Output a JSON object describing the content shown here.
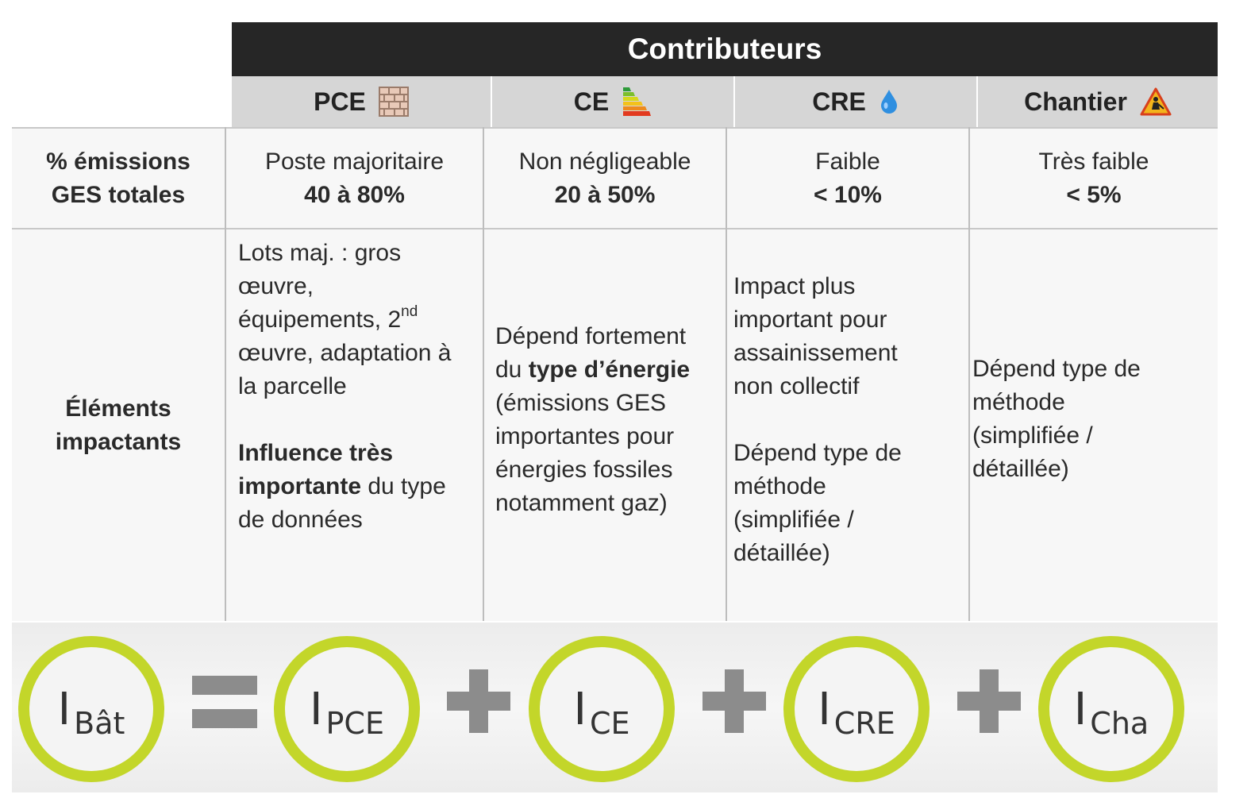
{
  "header": {
    "title": "Contributeurs",
    "columns": [
      {
        "label": "PCE",
        "icon": "brick-wall-icon"
      },
      {
        "label": "CE",
        "icon": "energy-label-icon"
      },
      {
        "label": "CRE",
        "icon": "water-drop-icon"
      },
      {
        "label": "Chantier",
        "icon": "construction-warning-icon"
      }
    ]
  },
  "rows": {
    "emissions": {
      "label_line1": "% émissions",
      "label_line2": "GES totales",
      "cells": [
        {
          "text": "Poste majoritaire",
          "value": "40 à 80%"
        },
        {
          "text": "Non négligeable",
          "value": "20 à 50%"
        },
        {
          "text": "Faible",
          "value": "< 10%"
        },
        {
          "text": "Très faible",
          "value": "< 5%"
        }
      ]
    },
    "elements": {
      "label_line1": "Éléments",
      "label_line2": "impactants",
      "pce": {
        "l1": "Lots maj. : gros",
        "l2": "œuvre,",
        "l3": "équipements, 2",
        "l3_sup": "nd",
        "l4": "œuvre, adaptation à",
        "l5": "la parcelle",
        "bold1": "Influence très",
        "bold2": "importante",
        "tail2": " du type",
        "l8": "de données"
      },
      "ce": {
        "l1": "Dépend fortement",
        "l2_pre": "du ",
        "l2_bold": "type d’énergie",
        "l3": "(émissions GES",
        "l4": "importantes pour",
        "l5": "énergies fossiles",
        "l6": "notamment gaz)"
      },
      "cre": {
        "l1": "Impact plus",
        "l2": "important pour",
        "l3": "assainissement",
        "l4": "non collectif",
        "l5": "Dépend type de",
        "l6": "méthode",
        "l7": "(simplifiée /",
        "l8": "détaillée)"
      },
      "chantier": {
        "l1": "Dépend type de",
        "l2": "méthode",
        "l3": "(simplifiée /",
        "l4": "détaillée)"
      }
    }
  },
  "equation": {
    "terms": [
      {
        "main": "I",
        "sub": "Bât"
      },
      {
        "main": "I",
        "sub": "PCE"
      },
      {
        "main": "I",
        "sub": "CE"
      },
      {
        "main": "I",
        "sub": "CRE"
      },
      {
        "main": "I",
        "sub": "Cha"
      }
    ],
    "ring_color": "#c3d62a",
    "operator_color": "#8c8c8c"
  }
}
